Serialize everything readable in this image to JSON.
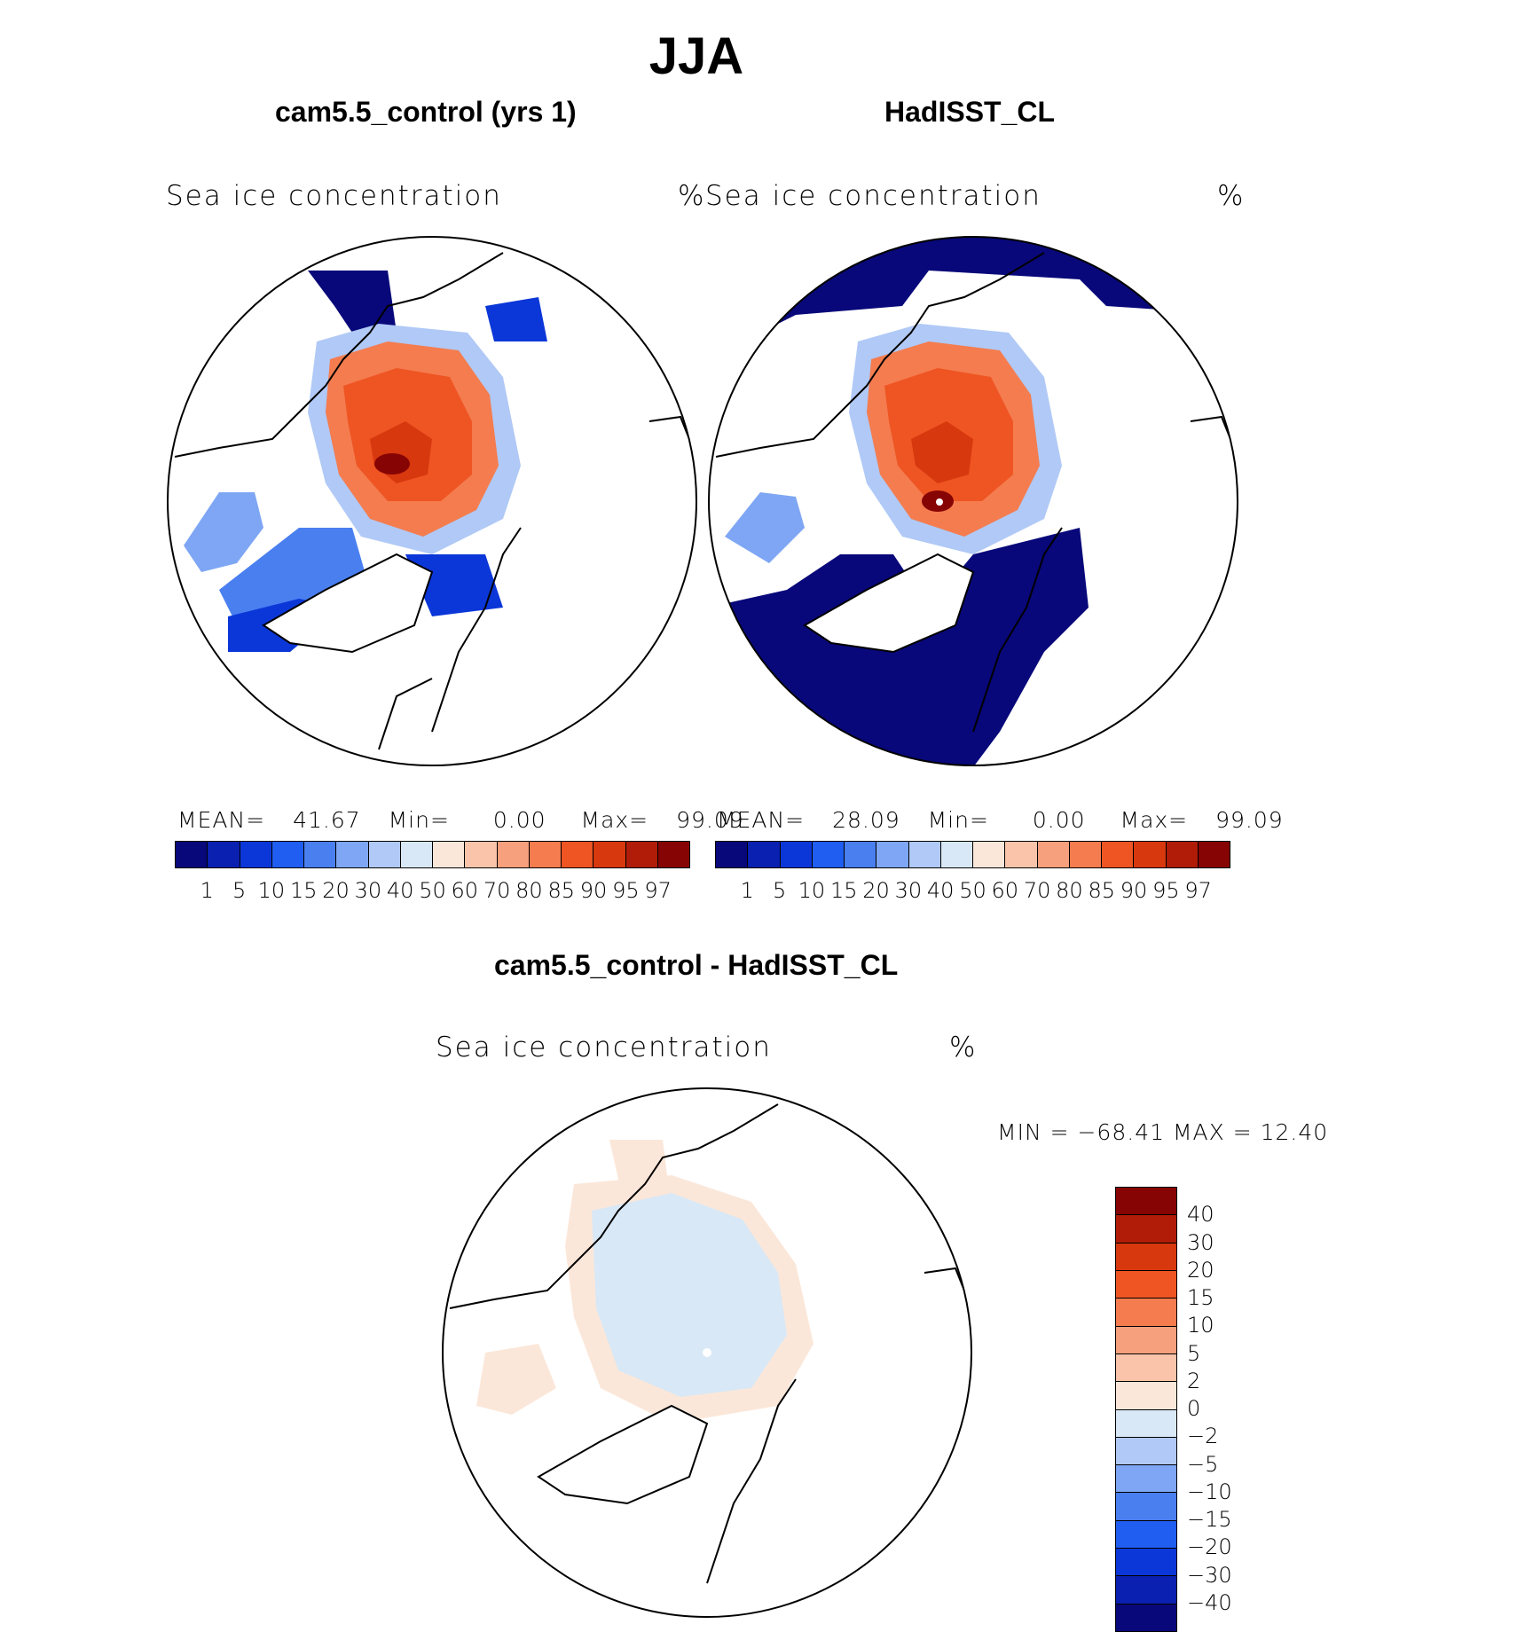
{
  "title": "JJA",
  "panels": [
    {
      "title": "cam5.5_control (yrs 1)",
      "variable": "Sea ice concentration",
      "unit": "%",
      "mean_label": "MEAN=",
      "mean": "41.67",
      "min_label": "Min=",
      "min": "0.00",
      "max_label": "Max=",
      "max": "99.09"
    },
    {
      "title": "HadISST_CL",
      "variable": "Sea ice concentration",
      "unit": "%",
      "mean_label": "MEAN=",
      "mean": "28.09",
      "min_label": "Min=",
      "min": "0.00",
      "max_label": "Max=",
      "max": "99.09"
    }
  ],
  "diff_panel": {
    "title": "cam5.5_control - HadISST_CL",
    "variable": "Sea ice concentration",
    "unit": "%",
    "minmax": "MIN = −68.41  MAX =   12.40"
  },
  "colorbar": {
    "colors": [
      "#08087a",
      "#0a20b0",
      "#0b37d8",
      "#1f5ef0",
      "#4a7ff0",
      "#7ea6f4",
      "#b0c9f6",
      "#d8e8f6",
      "#fbe7d9",
      "#f9c4aa",
      "#f7a07d",
      "#f47c4f",
      "#ee5523",
      "#d8380e",
      "#b01c08",
      "#870404"
    ],
    "ticks": [
      "1",
      "5",
      "10",
      "15",
      "20",
      "30",
      "40",
      "50",
      "60",
      "70",
      "80",
      "85",
      "90",
      "95",
      "97"
    ]
  },
  "diff_colorbar": {
    "colors": [
      "#870404",
      "#b01c08",
      "#d8380e",
      "#ee5523",
      "#f47c4f",
      "#f7a07d",
      "#f9c4aa",
      "#fbe7d9",
      "#d8e8f6",
      "#b0c9f6",
      "#7ea6f4",
      "#4a7ff0",
      "#1f5ef0",
      "#0b37d8",
      "#0a20b0",
      "#08087a"
    ],
    "ticks": [
      "40",
      "30",
      "20",
      "15",
      "10",
      "5",
      "2",
      "0",
      "−2",
      "−5",
      "−10",
      "−15",
      "−20",
      "−30",
      "−40"
    ]
  }
}
